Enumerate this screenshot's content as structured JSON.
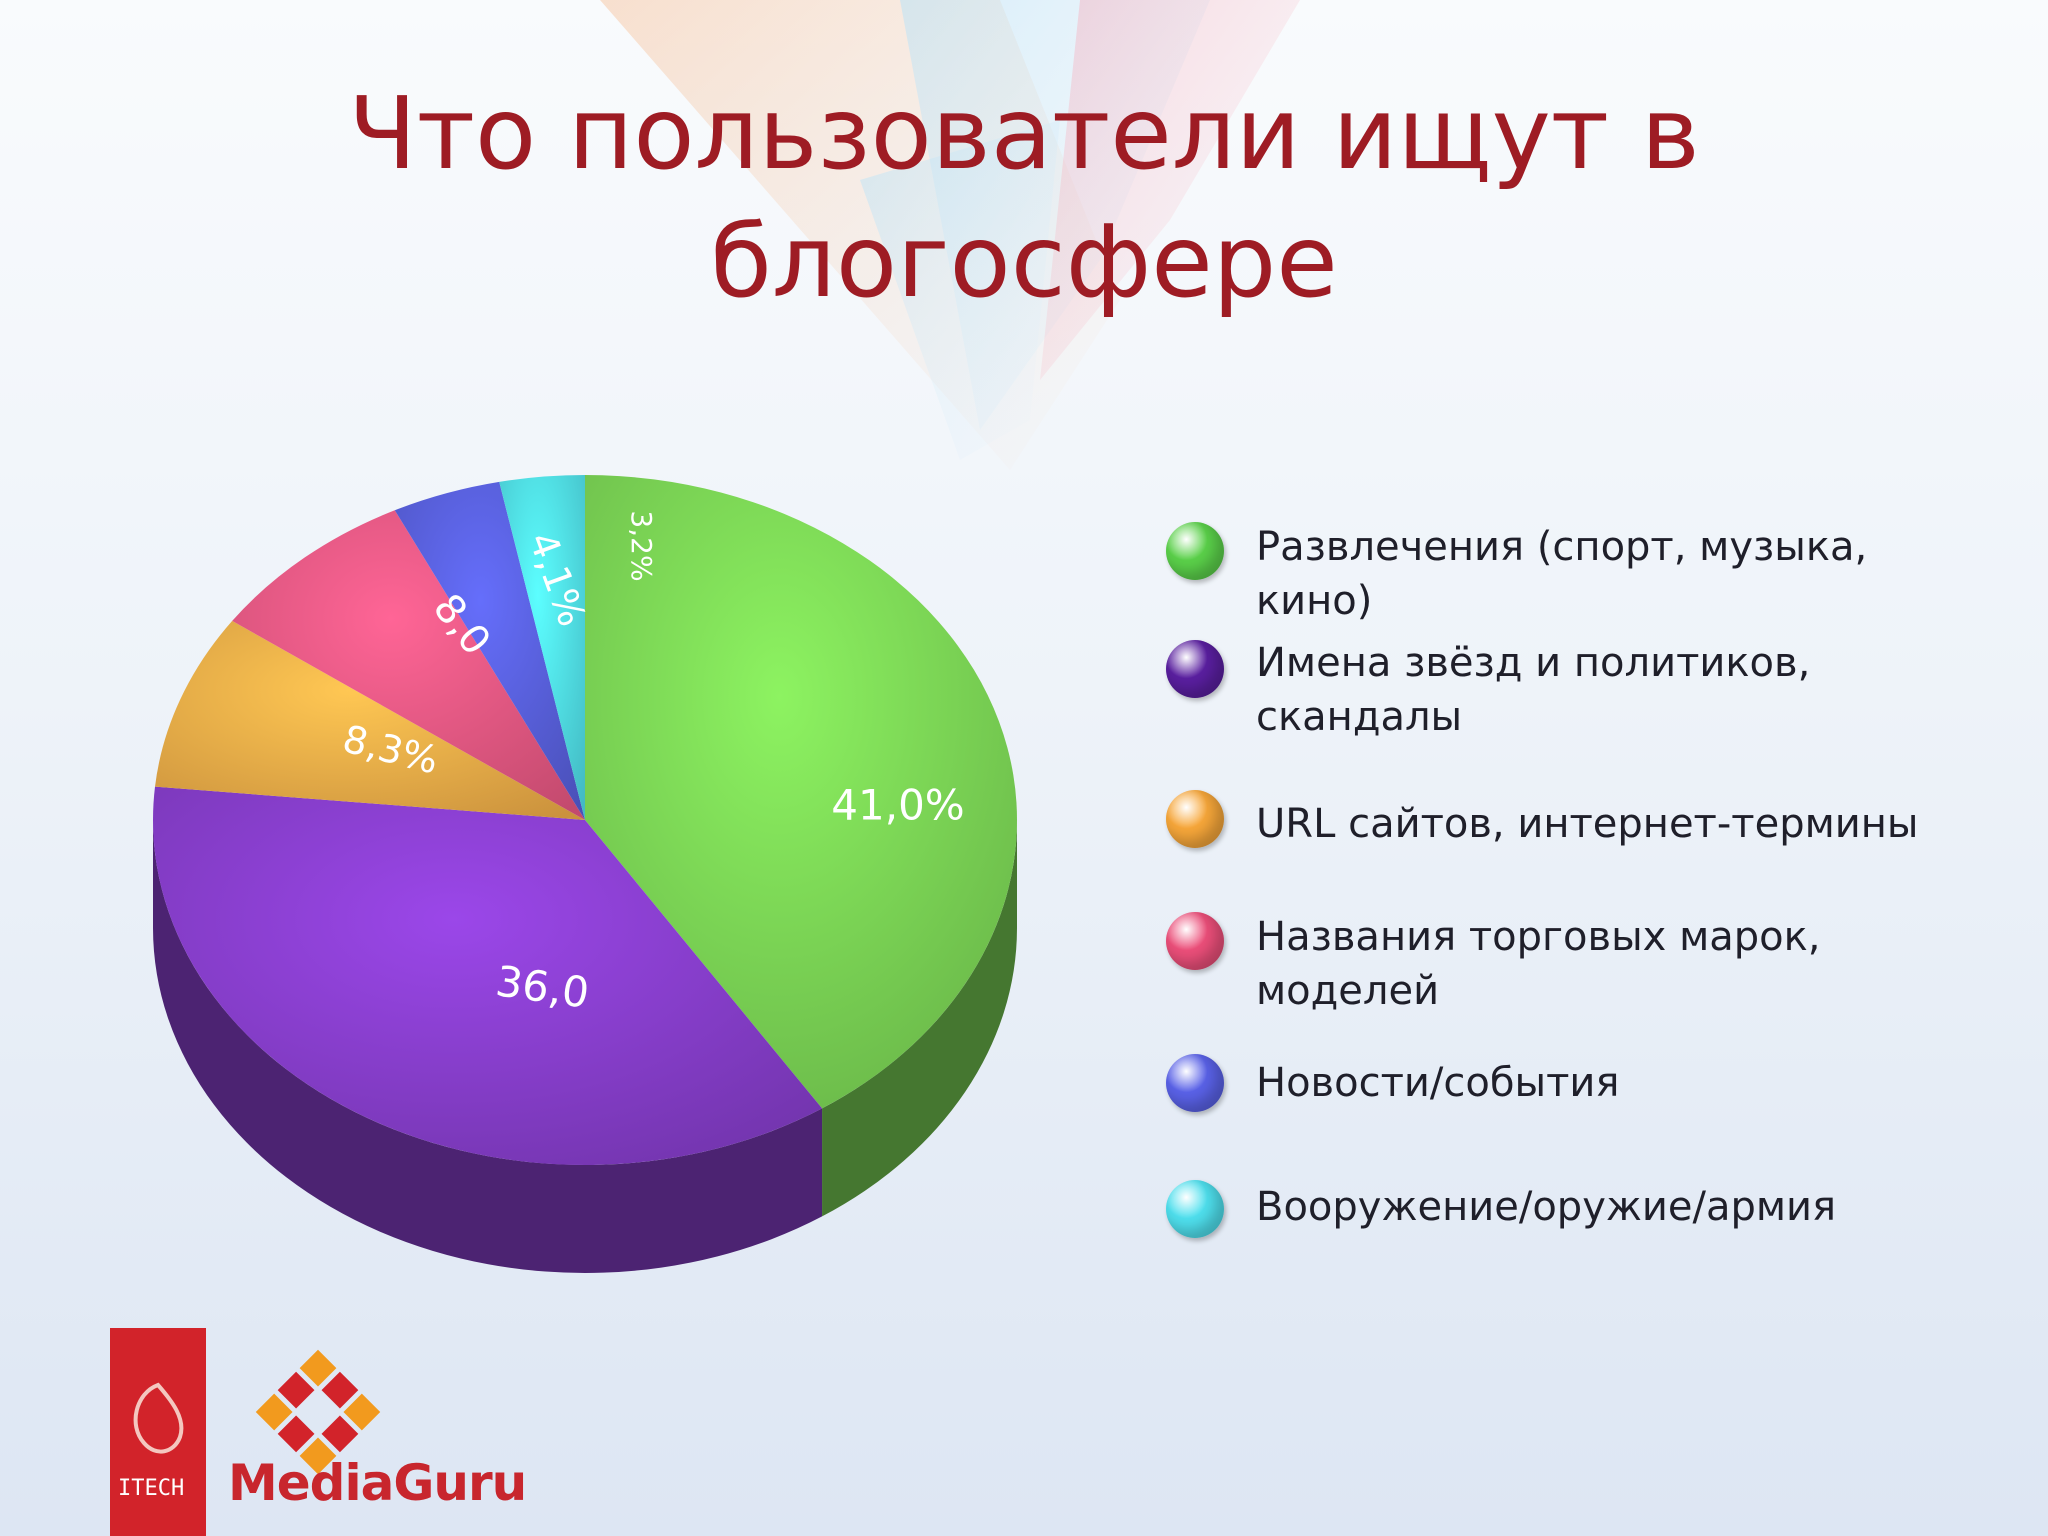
{
  "title_line1": "Что пользователи ищут в",
  "title_line2": "блогосфере",
  "chart_data": {
    "type": "pie",
    "title": "Что пользователи ищут в блогосфере",
    "slices": [
      {
        "name": "Развлечения (спорт, музыка, кино)",
        "value": 41.0,
        "label": "41,0%",
        "color": "#7ed957"
      },
      {
        "name": "Имена звёзд и политиков, скандалы",
        "value": 36.0,
        "label": "36,0",
        "color": "#8a3fd0"
      },
      {
        "name": "URL сайтов, интернет-термины",
        "value": 8.3,
        "label": "8,3%",
        "color": "#f7b24a"
      },
      {
        "name": "Названия торговых марок, моделей",
        "value": 8.0,
        "label": "8,0",
        "color": "#ee5a86"
      },
      {
        "name": "Новости/события",
        "value": 4.1,
        "label": "4,1%",
        "color": "#5a62e0"
      },
      {
        "name": "Вооружение/оружие/армия",
        "value": 3.2,
        "label": "3,2%",
        "color": "#52e3ee"
      }
    ],
    "legend_position": "right"
  },
  "legend": [
    {
      "label": "Развлечения (спорт, музыка, кино)",
      "color": "#5bd14a"
    },
    {
      "label": "Имена звёзд и политиков,\nскандалы",
      "color": "#5a1fa0"
    },
    {
      "label": "URL сайтов, интернет-термины",
      "color": "#f7a73a"
    },
    {
      "label": "Названия торговых марок,\nмоделей",
      "color": "#ec4f7a"
    },
    {
      "label": "Новости/события",
      "color": "#5a62e8"
    },
    {
      "label": "Вооружение/оружие/армия",
      "color": "#4fe0ee"
    }
  ],
  "logos": {
    "itech": "ITECH",
    "mediaguru": "MediaGuru"
  }
}
